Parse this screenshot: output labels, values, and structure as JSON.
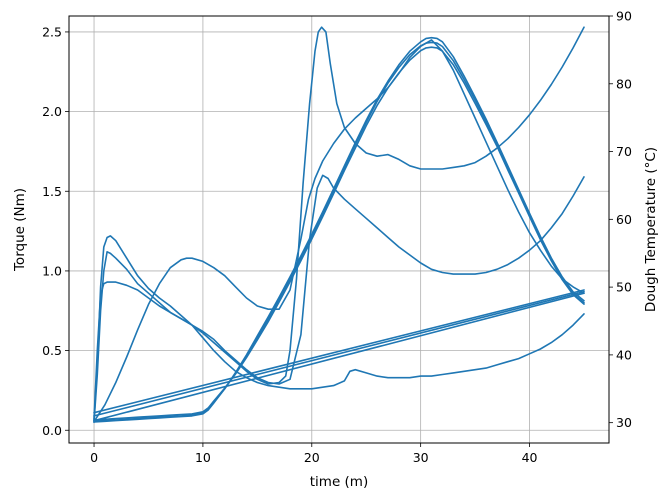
{
  "chart_data": {
    "type": "line",
    "title": "",
    "xlabel": "time (m)",
    "ylabel": "Torque (Nm)",
    "y2label": "Dough Temperature (°C)",
    "xlim": [
      -2.3,
      47.3
    ],
    "ylim": [
      -0.08,
      2.6
    ],
    "y2lim": [
      27.0,
      90.0
    ],
    "xticks": [
      0,
      10,
      20,
      30,
      40
    ],
    "yticks": [
      0.0,
      0.5,
      1.0,
      1.5,
      2.0,
      2.5
    ],
    "y2ticks": [
      30,
      40,
      50,
      60,
      70,
      80,
      90
    ],
    "grid": true,
    "line_color": "#1f77b4",
    "series": [
      {
        "axis": "left",
        "x": [
          0,
          0.3,
          0.6,
          0.9,
          1.2,
          1.5,
          2,
          3,
          4,
          5,
          6,
          7,
          8,
          9,
          10,
          11,
          12,
          13,
          14,
          15,
          16,
          17,
          17.6,
          18,
          18.6,
          19.2,
          19.8,
          20.3,
          20.6,
          20.9,
          21.3,
          21.7,
          22.3,
          23,
          24,
          25,
          26,
          27,
          28,
          29,
          30,
          31,
          32,
          33,
          34,
          35,
          36,
          37,
          38,
          39,
          40,
          41,
          42,
          43,
          44,
          45
        ],
        "y": [
          0.05,
          0.35,
          0.75,
          1.0,
          1.12,
          1.11,
          1.08,
          1.01,
          0.92,
          0.86,
          0.8,
          0.74,
          0.7,
          0.66,
          0.61,
          0.55,
          0.49,
          0.43,
          0.37,
          0.32,
          0.29,
          0.3,
          0.34,
          0.5,
          0.95,
          1.55,
          2.05,
          2.38,
          2.5,
          2.53,
          2.5,
          2.3,
          2.05,
          1.9,
          1.8,
          1.74,
          1.72,
          1.73,
          1.7,
          1.66,
          1.64,
          1.64,
          1.64,
          1.65,
          1.66,
          1.68,
          1.72,
          1.77,
          1.83,
          1.9,
          1.98,
          2.07,
          2.17,
          2.28,
          2.4,
          2.53
        ]
      },
      {
        "axis": "left",
        "x": [
          0,
          0.3,
          0.6,
          0.9,
          1.2,
          1.5,
          2,
          3,
          4,
          5,
          6,
          7,
          8,
          9,
          10,
          11,
          12,
          13,
          14,
          15,
          16,
          17,
          18,
          19,
          19.8,
          20.5,
          21,
          21.5,
          22,
          23,
          24,
          25,
          26,
          27,
          28,
          29,
          30,
          31,
          32,
          33,
          34,
          35,
          36,
          37,
          38,
          39,
          40,
          41,
          42,
          43,
          44,
          45
        ],
        "y": [
          0.07,
          0.5,
          0.85,
          0.92,
          0.93,
          0.93,
          0.93,
          0.91,
          0.88,
          0.83,
          0.78,
          0.74,
          0.7,
          0.66,
          0.62,
          0.57,
          0.5,
          0.44,
          0.38,
          0.33,
          0.3,
          0.29,
          0.32,
          0.6,
          1.2,
          1.52,
          1.6,
          1.58,
          1.52,
          1.45,
          1.39,
          1.33,
          1.27,
          1.21,
          1.15,
          1.1,
          1.05,
          1.01,
          0.99,
          0.98,
          0.98,
          0.98,
          0.99,
          1.01,
          1.04,
          1.08,
          1.13,
          1.19,
          1.27,
          1.36,
          1.47,
          1.59
        ]
      },
      {
        "axis": "left",
        "x": [
          0,
          0.3,
          0.6,
          0.9,
          1.2,
          1.5,
          2,
          3,
          4,
          5,
          6,
          7,
          8,
          9,
          10,
          11,
          12,
          13,
          14,
          15,
          16,
          17,
          18,
          19,
          20,
          21,
          22,
          23,
          23.5,
          24,
          25,
          26,
          27,
          28,
          29,
          30,
          31,
          32,
          33,
          34,
          35,
          36,
          37,
          38,
          39,
          40,
          41,
          42,
          43,
          44,
          45
        ],
        "y": [
          0.06,
          0.4,
          0.9,
          1.15,
          1.21,
          1.22,
          1.19,
          1.08,
          0.97,
          0.89,
          0.83,
          0.78,
          0.72,
          0.66,
          0.58,
          0.5,
          0.43,
          0.37,
          0.33,
          0.3,
          0.28,
          0.27,
          0.26,
          0.26,
          0.26,
          0.27,
          0.28,
          0.31,
          0.37,
          0.38,
          0.36,
          0.34,
          0.33,
          0.33,
          0.33,
          0.34,
          0.34,
          0.35,
          0.36,
          0.37,
          0.38,
          0.39,
          0.41,
          0.43,
          0.45,
          0.48,
          0.51,
          0.55,
          0.6,
          0.66,
          0.73
        ]
      },
      {
        "axis": "right",
        "x": [
          0,
          1,
          2,
          3,
          4,
          5,
          6,
          7,
          8,
          9,
          10,
          10.5,
          11,
          12,
          13,
          14,
          15,
          16,
          17,
          18,
          19,
          20,
          21,
          22,
          23,
          24,
          25,
          26,
          27,
          28,
          29,
          30,
          30.5,
          31,
          31.5,
          32,
          33,
          34,
          35,
          36,
          37,
          38,
          39,
          40,
          41,
          42,
          43,
          44,
          45
        ],
        "y": [
          30.2,
          30.3,
          30.4,
          30.5,
          30.6,
          30.7,
          30.8,
          30.9,
          31.0,
          31.1,
          31.4,
          32.0,
          33.0,
          35.0,
          37.3,
          39.8,
          42.5,
          45.3,
          48.2,
          51.2,
          54.3,
          57.5,
          60.8,
          64.2,
          67.6,
          71.0,
          74.3,
          77.4,
          80.1,
          82.4,
          84.3,
          85.6,
          86.0,
          86.1,
          86.0,
          85.5,
          83.4,
          80.6,
          77.6,
          74.4,
          71.1,
          67.6,
          64.1,
          60.6,
          57.2,
          54.0,
          51.2,
          49.0,
          47.7
        ]
      },
      {
        "axis": "right",
        "x": [
          0,
          1,
          2,
          3,
          4,
          5,
          6,
          7,
          8,
          9,
          10,
          10.5,
          11,
          12,
          13,
          14,
          15,
          16,
          17,
          18,
          19,
          20,
          21,
          22,
          23,
          24,
          25,
          26,
          27,
          28,
          29,
          30,
          30.5,
          31,
          31.5,
          32,
          33,
          34,
          35,
          36,
          37,
          38,
          39,
          40,
          41,
          42,
          43,
          44,
          45
        ],
        "y": [
          30.1,
          30.2,
          30.3,
          30.4,
          30.5,
          30.6,
          30.7,
          30.8,
          30.9,
          31.0,
          31.3,
          31.9,
          32.9,
          35.0,
          37.4,
          40.0,
          42.8,
          45.6,
          48.5,
          51.5,
          54.6,
          57.8,
          61.1,
          64.5,
          67.9,
          71.3,
          74.6,
          77.7,
          80.4,
          82.8,
          84.8,
          86.2,
          86.7,
          86.8,
          86.7,
          86.2,
          84.0,
          81.1,
          78.0,
          74.8,
          71.4,
          67.9,
          64.4,
          60.9,
          57.5,
          54.3,
          51.5,
          49.3,
          48.0
        ]
      },
      {
        "axis": "right",
        "x": [
          0,
          1,
          2,
          3,
          4,
          5,
          6,
          7,
          8,
          9,
          10,
          10.5,
          11,
          12,
          13,
          14,
          15,
          16,
          17,
          18,
          19,
          20,
          21,
          22,
          23,
          24,
          25,
          26,
          27,
          28,
          29,
          30,
          30.5,
          31,
          31.5,
          32,
          33,
          34,
          35,
          36,
          37,
          38,
          39,
          40,
          41,
          42,
          43,
          44,
          45
        ],
        "y": [
          30.4,
          30.5,
          30.6,
          30.7,
          30.8,
          30.9,
          31.0,
          31.1,
          31.2,
          31.3,
          31.6,
          32.2,
          33.2,
          35.1,
          37.2,
          39.6,
          42.2,
          44.9,
          47.8,
          50.8,
          53.9,
          57.1,
          60.4,
          63.8,
          67.2,
          70.5,
          73.8,
          76.8,
          79.4,
          81.6,
          83.5,
          84.9,
          85.3,
          85.4,
          85.3,
          84.8,
          82.8,
          80.1,
          77.1,
          74.0,
          70.8,
          67.3,
          63.9,
          60.4,
          57.0,
          53.9,
          51.1,
          48.9,
          47.5
        ]
      },
      {
        "axis": "left",
        "x": [
          0.05,
          1,
          2,
          3,
          4,
          5,
          6,
          7,
          8,
          8.5,
          9,
          10,
          11,
          12,
          13,
          14,
          15,
          16,
          17,
          18,
          19,
          19.7,
          20.3,
          21,
          22,
          23,
          24,
          25,
          26,
          27,
          28,
          29,
          30,
          31,
          32,
          33,
          34,
          35,
          36,
          37,
          38,
          39,
          40,
          41,
          42,
          43,
          44,
          45
        ],
        "y": [
          0.06,
          0.16,
          0.3,
          0.46,
          0.63,
          0.79,
          0.92,
          1.02,
          1.07,
          1.08,
          1.08,
          1.06,
          1.02,
          0.97,
          0.9,
          0.83,
          0.78,
          0.76,
          0.76,
          0.88,
          1.2,
          1.45,
          1.58,
          1.69,
          1.8,
          1.89,
          1.96,
          2.02,
          2.08,
          2.15,
          2.24,
          2.34,
          2.41,
          2.45,
          2.38,
          2.26,
          2.11,
          1.96,
          1.81,
          1.66,
          1.51,
          1.37,
          1.24,
          1.13,
          1.03,
          0.95,
          0.9,
          0.86
        ]
      },
      {
        "axis": "left",
        "x": [
          0,
          45
        ],
        "y": [
          0.06,
          0.86
        ]
      },
      {
        "axis": "left",
        "x": [
          0,
          45
        ],
        "y": [
          0.09,
          0.87
        ]
      },
      {
        "axis": "left",
        "x": [
          0,
          45
        ],
        "y": [
          0.11,
          0.88
        ]
      }
    ]
  }
}
